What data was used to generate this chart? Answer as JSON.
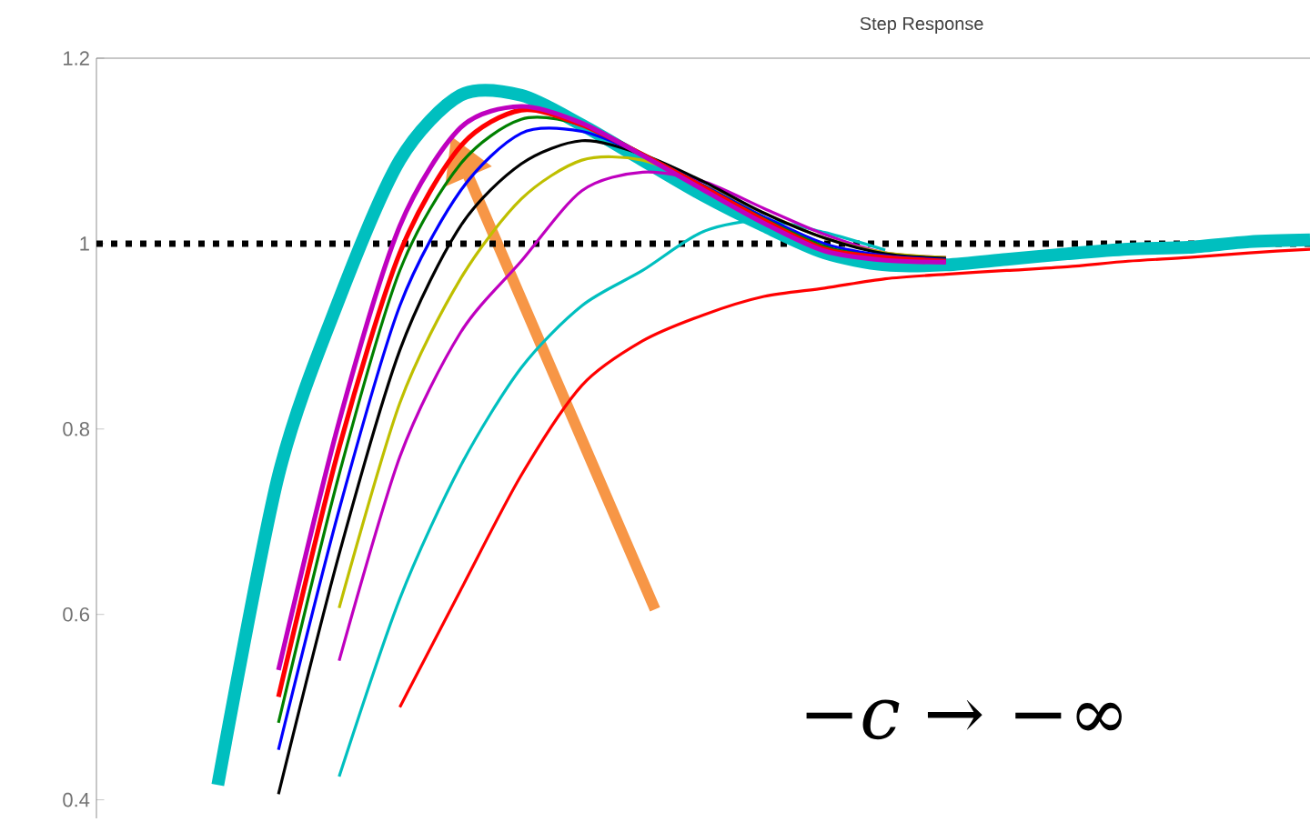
{
  "chart_data": {
    "type": "line",
    "title": "Step Response",
    "categories": [
      null,
      null,
      null,
      null,
      null,
      null,
      null,
      null,
      null,
      null,
      null,
      null,
      null,
      null,
      null,
      null,
      null,
      null,
      null,
      null,
      null
    ],
    "series": [
      {
        "color": "#00bfbf",
        "values": [
          null,
          null,
          0.416,
          0.75,
          0.94,
          1.09,
          1.16,
          1.16,
          1.128,
          1.09,
          1.052,
          1.019,
          0.99,
          0.977,
          0.977,
          0.983,
          0.989,
          0.994,
          0.996,
          1.002,
          1.004
        ]
      },
      {
        "color": "#ff0000",
        "values": [
          null,
          null,
          null,
          null,
          null,
          0.5,
          0.626,
          0.75,
          0.847,
          0.895,
          0.923,
          0.943,
          0.952,
          0.962,
          0.967,
          0.971,
          0.975,
          0.981,
          0.985,
          0.99,
          0.994
        ]
      },
      {
        "color": "#00bfbf",
        "values": [
          null,
          null,
          null,
          null,
          0.425,
          0.617,
          0.76,
          0.866,
          0.933,
          0.971,
          1.013,
          1.025,
          1.012,
          0.993,
          null,
          null,
          null,
          null,
          null,
          null,
          null
        ]
      },
      {
        "color": "#bf00bf",
        "values": [
          null,
          null,
          null,
          null,
          0.55,
          0.77,
          0.904,
          0.981,
          1.057,
          1.077,
          1.067,
          1.038,
          1.01,
          0.99,
          0.985,
          null,
          null,
          null,
          null,
          null,
          null
        ]
      },
      {
        "color": "#bfbf00",
        "values": [
          null,
          null,
          null,
          null,
          0.607,
          0.828,
          0.962,
          1.048,
          1.09,
          1.09,
          1.063,
          1.033,
          1.006,
          0.99,
          0.985,
          null,
          null,
          null,
          null,
          null,
          null
        ]
      },
      {
        "color": "#000000",
        "values": [
          null,
          null,
          null,
          0.406,
          0.665,
          0.885,
          1.019,
          1.086,
          1.111,
          1.096,
          1.067,
          1.033,
          1.006,
          0.989,
          0.984,
          null,
          null,
          null,
          null,
          null,
          null
        ]
      },
      {
        "color": "#0000ff",
        "values": [
          null,
          null,
          null,
          0.454,
          0.713,
          0.933,
          1.057,
          1.119,
          1.121,
          1.096,
          1.063,
          1.029,
          1.0,
          0.987,
          0.983,
          null,
          null,
          null,
          null,
          null,
          null
        ]
      },
      {
        "color": "#008000",
        "values": [
          null,
          null,
          null,
          0.483,
          0.751,
          0.971,
          1.086,
          1.134,
          1.128,
          1.097,
          1.062,
          1.027,
          0.997,
          0.985,
          0.982,
          null,
          null,
          null,
          null,
          null,
          null
        ]
      },
      {
        "color": "#ff0000",
        "values": [
          null,
          null,
          null,
          0.511,
          0.78,
          0.99,
          1.105,
          1.144,
          1.128,
          1.096,
          1.061,
          1.025,
          0.994,
          0.985,
          0.981,
          null,
          null,
          null,
          null,
          null,
          null
        ]
      },
      {
        "color": "#bf00bf",
        "values": [
          null,
          null,
          null,
          0.54,
          0.808,
          1.019,
          1.125,
          1.148,
          1.13,
          1.095,
          1.058,
          1.022,
          0.992,
          0.982,
          0.98,
          null,
          null,
          null,
          null,
          null,
          null
        ]
      }
    ],
    "ylim": [
      0.38,
      1.2
    ],
    "yticks": [
      0.4,
      0.6,
      0.8,
      1,
      1.2
    ],
    "tick_labels": "y",
    "grid": false,
    "ref_lines": [
      {
        "axis": "y",
        "value": 1,
        "color": "#000000",
        "line_style": "dotted"
      }
    ],
    "annotations": [
      "−*c* → −∞"
    ]
  }
}
